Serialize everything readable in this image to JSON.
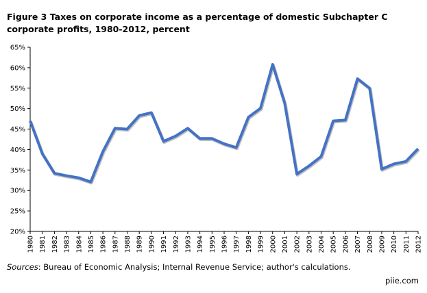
{
  "chart_data": {
    "type": "line",
    "title": "Figure 3 Taxes on corporate income as a percentage of domestic Subchapter C corporate profits, 1980-2012, percent",
    "xlabel": "",
    "ylabel": "",
    "ylim": [
      20,
      65
    ],
    "yticks": [
      "20%",
      "25%",
      "30%",
      "35%",
      "40%",
      "45%",
      "50%",
      "55%",
      "60%",
      "65%"
    ],
    "grid": false,
    "legend": "none",
    "color": "#4472C4",
    "categories": [
      "1980",
      "1981",
      "1982",
      "1983",
      "1984",
      "1985",
      "1986",
      "1987",
      "1988",
      "1989",
      "1990",
      "1991",
      "1992",
      "1993",
      "1994",
      "1995",
      "1996",
      "1997",
      "1998",
      "1999",
      "2000",
      "2001",
      "2002",
      "2003",
      "2004",
      "2005",
      "2006",
      "2007",
      "2008",
      "2009",
      "2010",
      "2011",
      "2012"
    ],
    "values": [
      47.0,
      39.0,
      34.2,
      33.6,
      33.1,
      32.1,
      39.5,
      45.2,
      45.0,
      48.3,
      49.0,
      42.0,
      43.3,
      45.2,
      42.7,
      42.7,
      41.4,
      40.5,
      47.9,
      50.1,
      60.8,
      51.3,
      34.0,
      36.0,
      38.3,
      47.0,
      47.2,
      57.3,
      55.0,
      35.2,
      36.5,
      37.1,
      40.2
    ]
  },
  "sources": {
    "label": "Sources",
    "text": ": Bureau of Economic Analysis; Internal Revenue Service; author's calculations."
  },
  "credit": "piie.com"
}
